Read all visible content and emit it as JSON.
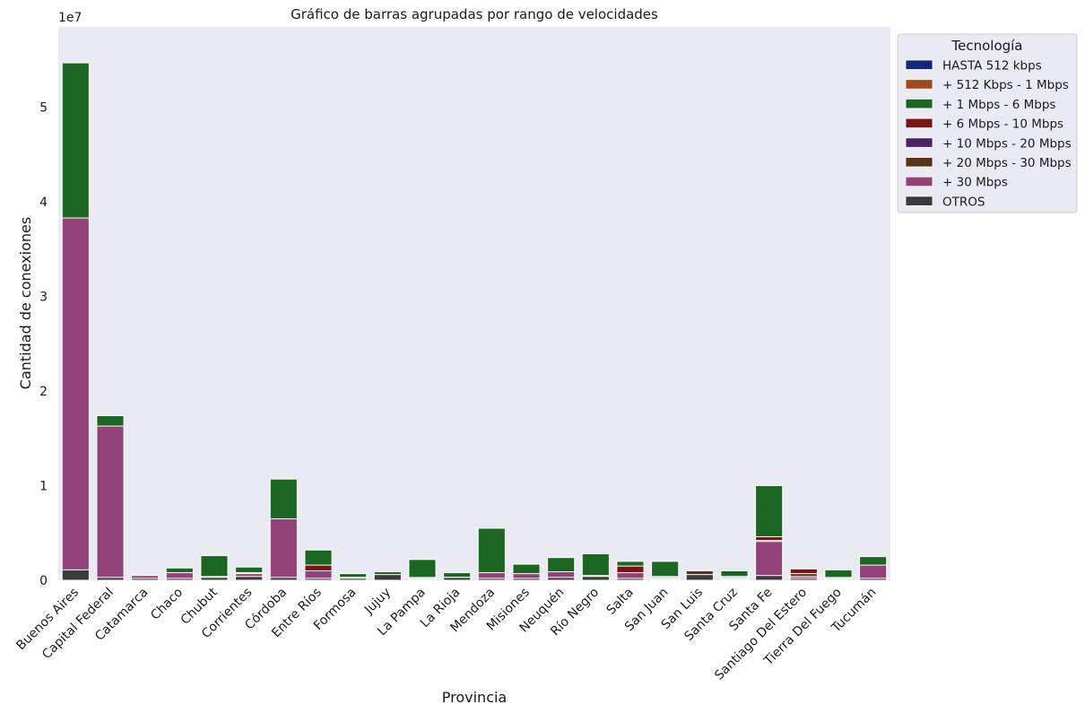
{
  "chart_data": {
    "type": "bar",
    "stacked_overlay": true,
    "title": "Gráfico de barras agrupadas por rango de velocidades",
    "xlabel": "Provincia",
    "ylabel": "Cantidad de conexiones",
    "y_multiplier_label": "1e7",
    "ylim": [
      0,
      5.85
    ],
    "yticks": [
      0,
      1,
      2,
      3,
      4,
      5
    ],
    "grid": false,
    "legend_title": "Tecnología",
    "legend_position": "upper-right-outside",
    "categories": [
      "Buenos Aires",
      "Capital Federal",
      "Catamarca",
      "Chaco",
      "Chubut",
      "Corrientes",
      "Córdoba",
      "Entre Ríos",
      "Formosa",
      "Jujuy",
      "La Pampa",
      "La Rioja",
      "Mendoza",
      "Misiones",
      "Neuquén",
      "Río Negro",
      "Salta",
      "San Juan",
      "San Luis",
      "Santa Cruz",
      "Santa Fe",
      "Santiago Del Estero",
      "Tierra Del Fuego",
      "Tucumán"
    ],
    "series": [
      {
        "name": "HASTA 512 kbps",
        "color": "#12287a",
        "values": [
          0.01,
          0.005,
          0.001,
          0.002,
          0.002,
          0.003,
          0.01,
          0.005,
          0.001,
          0.001,
          0.001,
          0.001,
          0.005,
          0.002,
          0.003,
          0.002,
          0.002,
          0.001,
          0.001,
          0.001,
          0.005,
          0.001,
          0.001,
          0.002
        ]
      },
      {
        "name": "+ 512 Kbps - 1 Mbps",
        "color": "#a14a1e",
        "values": [
          0.05,
          0.02,
          0.005,
          0.01,
          0.01,
          0.01,
          0.05,
          0.03,
          0.005,
          0.005,
          0.01,
          0.005,
          0.03,
          0.01,
          0.01,
          0.01,
          0.01,
          0.01,
          0.005,
          0.005,
          0.05,
          0.005,
          0.005,
          0.01
        ]
      },
      {
        "name": "+ 1 Mbps - 6 Mbps",
        "color": "#1c6624",
        "values": [
          5.47,
          1.74,
          0.04,
          0.13,
          0.26,
          0.14,
          1.07,
          0.32,
          0.07,
          0.09,
          0.22,
          0.08,
          0.55,
          0.17,
          0.24,
          0.28,
          0.2,
          0.2,
          0.08,
          0.1,
          1.0,
          0.05,
          0.11,
          0.25
        ]
      },
      {
        "name": "+ 6 Mbps - 10 Mbps",
        "color": "#7a1515",
        "values": [
          0.08,
          0.02,
          0.03,
          0.05,
          0.03,
          0.06,
          0.12,
          0.16,
          0.03,
          0.04,
          0.03,
          0.03,
          0.06,
          0.06,
          0.04,
          0.05,
          0.15,
          0.04,
          0.05,
          0.04,
          0.46,
          0.12,
          0.03,
          0.06
        ]
      },
      {
        "name": "+ 10 Mbps - 20 Mbps",
        "color": "#4b2368",
        "values": [
          0.06,
          0.02,
          0.02,
          0.03,
          0.02,
          0.04,
          0.05,
          0.06,
          0.02,
          0.03,
          0.02,
          0.02,
          0.04,
          0.03,
          0.03,
          0.04,
          0.04,
          0.03,
          0.03,
          0.03,
          0.1,
          0.03,
          0.02,
          0.03
        ]
      },
      {
        "name": "+ 20 Mbps - 30 Mbps",
        "color": "#583316",
        "values": [
          0.07,
          0.02,
          0.01,
          0.02,
          0.01,
          0.08,
          0.04,
          0.03,
          0.01,
          0.02,
          0.01,
          0.03,
          0.03,
          0.02,
          0.02,
          0.03,
          0.03,
          0.02,
          0.1,
          0.02,
          0.42,
          0.07,
          0.01,
          0.02
        ]
      },
      {
        "name": "+ 30 Mbps",
        "color": "#93427a",
        "values": [
          3.83,
          1.63,
          0.05,
          0.08,
          0.04,
          0.07,
          0.65,
          0.1,
          0.03,
          0.04,
          0.02,
          0.03,
          0.08,
          0.07,
          0.09,
          0.04,
          0.08,
          0.02,
          0.04,
          0.02,
          0.41,
          0.04,
          0.02,
          0.16
        ]
      },
      {
        "name": "OTROS",
        "color": "#3a3a3a",
        "values": [
          0.11,
          0.03,
          0.02,
          0.02,
          0.03,
          0.04,
          0.03,
          0.02,
          0.02,
          0.06,
          0.01,
          0.03,
          0.02,
          0.02,
          0.03,
          0.04,
          0.02,
          0.01,
          0.06,
          0.01,
          0.05,
          0.02,
          0.01,
          0.02
        ]
      }
    ]
  }
}
